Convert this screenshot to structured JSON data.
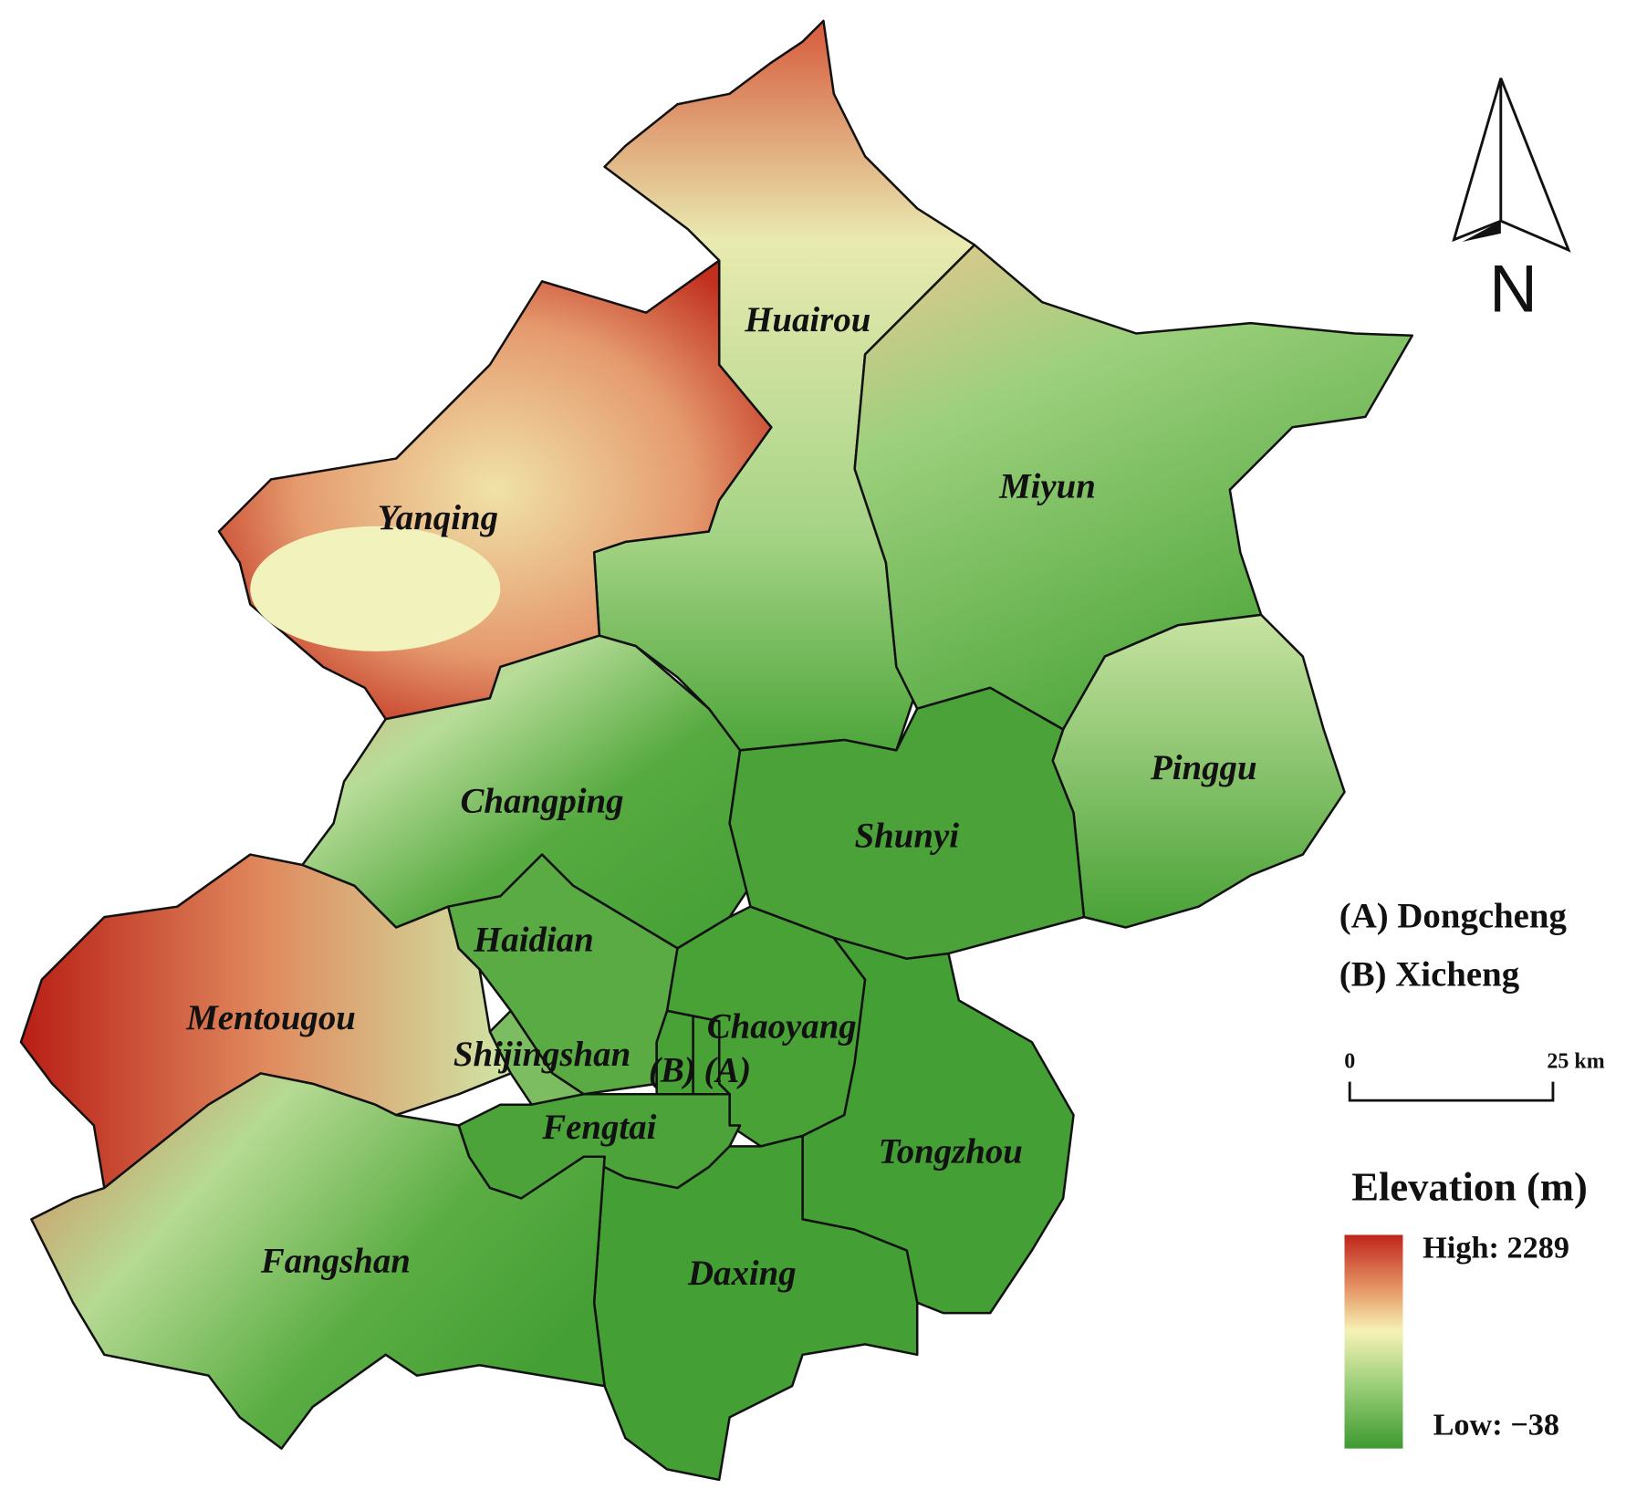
{
  "map": {
    "districts": [
      "Huairou",
      "Yanqing",
      "Miyun",
      "Pinggu",
      "Changping",
      "Shunyi",
      "Haidian",
      "Mentougou",
      "Shijingshan",
      "Chaoyang",
      "(B)",
      "(A)",
      "Fengtai",
      "Tongzhou",
      "Daxing",
      "Fangshan"
    ],
    "key": [
      "(A) Dongcheng",
      "(B) Xicheng"
    ],
    "scale_bar": {
      "start": "0",
      "end": "25 km"
    },
    "legend": {
      "title": "Elevation (m)",
      "high": "High: 2289",
      "low": "Low: −38"
    },
    "north": "N"
  }
}
